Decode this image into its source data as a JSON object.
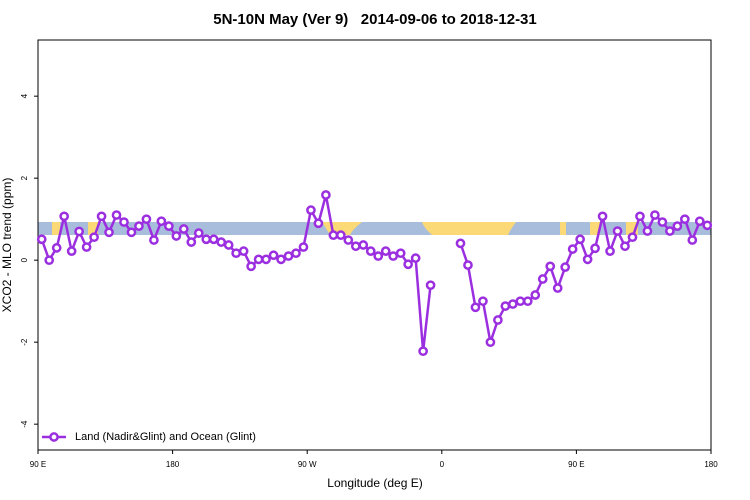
{
  "chart_data": {
    "type": "line",
    "title": "5N-10N May (Ver 9)   2014-09-06 to 2018-12-31",
    "xlabel": "Longitude (deg E)",
    "ylabel": "XCO2 - MLO trend (ppm)",
    "x": [
      92.5,
      97.5,
      102.5,
      107.5,
      112.5,
      117.5,
      122.5,
      127.5,
      132.5,
      137.5,
      142.5,
      147.5,
      152.5,
      157.5,
      162.5,
      167.5,
      172.5,
      177.5,
      182.5,
      187.5,
      192.5,
      197.5,
      202.5,
      207.5,
      212.5,
      217.5,
      222.5,
      227.5,
      232.5,
      237.5,
      242.5,
      247.5,
      252.5,
      257.5,
      262.5,
      267.5,
      272.5,
      277.5,
      282.5,
      287.5,
      292.5,
      297.5,
      302.5,
      307.5,
      312.5,
      317.5,
      322.5,
      327.5,
      332.5,
      337.5,
      342.5,
      347.5,
      352.5,
      357.5,
      362.5,
      367.5,
      372.5,
      377.5,
      382.5,
      387.5,
      392.5,
      397.5,
      402.5,
      407.5,
      412.5,
      417.5,
      422.5,
      427.5,
      432.5,
      437.5,
      442.5,
      447.5,
      452.5,
      457.5,
      462.5,
      467.5,
      472.5,
      477.5,
      482.5,
      487.5,
      492.5,
      497.5,
      502.5,
      507.5,
      512.5,
      517.5,
      522.5,
      527.5,
      532.5,
      537.5
    ],
    "series": [
      {
        "name": "Land (Nadir&Glint) and Ocean (Glint)",
        "color": "#9b2fe0",
        "values": [
          0.51,
          0.0,
          0.3,
          1.07,
          0.22,
          0.7,
          0.32,
          0.56,
          1.07,
          0.68,
          1.1,
          0.93,
          0.68,
          0.83,
          1.0,
          0.49,
          0.95,
          0.83,
          0.59,
          0.76,
          0.44,
          0.66,
          0.51,
          0.51,
          0.44,
          0.37,
          0.17,
          0.22,
          -0.15,
          0.02,
          0.02,
          0.12,
          0.02,
          0.1,
          0.17,
          0.32,
          1.22,
          0.9,
          1.59,
          0.61,
          0.61,
          0.49,
          0.34,
          0.37,
          0.22,
          0.1,
          0.22,
          0.1,
          0.17,
          -0.1,
          0.05,
          -2.22,
          -0.61,
          null,
          null,
          null,
          0.41,
          -0.12,
          -1.15,
          -1.0,
          -2.0,
          -1.46,
          -1.12,
          -1.07,
          -1.0,
          -1.0,
          -0.85,
          -0.46,
          -0.15,
          -0.68,
          -0.17,
          0.27,
          0.51,
          0.02,
          0.29,
          1.07,
          0.22,
          0.71,
          0.34,
          0.56,
          1.07,
          0.71,
          1.1,
          0.93,
          0.71,
          0.83,
          1.0,
          0.49,
          0.95,
          0.85
        ]
      }
    ],
    "xlim": [
      90,
      540
    ],
    "xticks": [
      {
        "value": 90,
        "label": "90 E"
      },
      180,
      {
        "value": 270,
        "label": "90 W"
      },
      {
        "value": 360,
        "label": "0"
      },
      {
        "value": 450,
        "label": "90 E"
      },
      {
        "value": 540,
        "label": "180"
      }
    ],
    "ylim": [
      -4.63,
      5.37
    ],
    "yticks": [
      -4,
      -2,
      0,
      2,
      4
    ],
    "legend": "bottomleft"
  }
}
